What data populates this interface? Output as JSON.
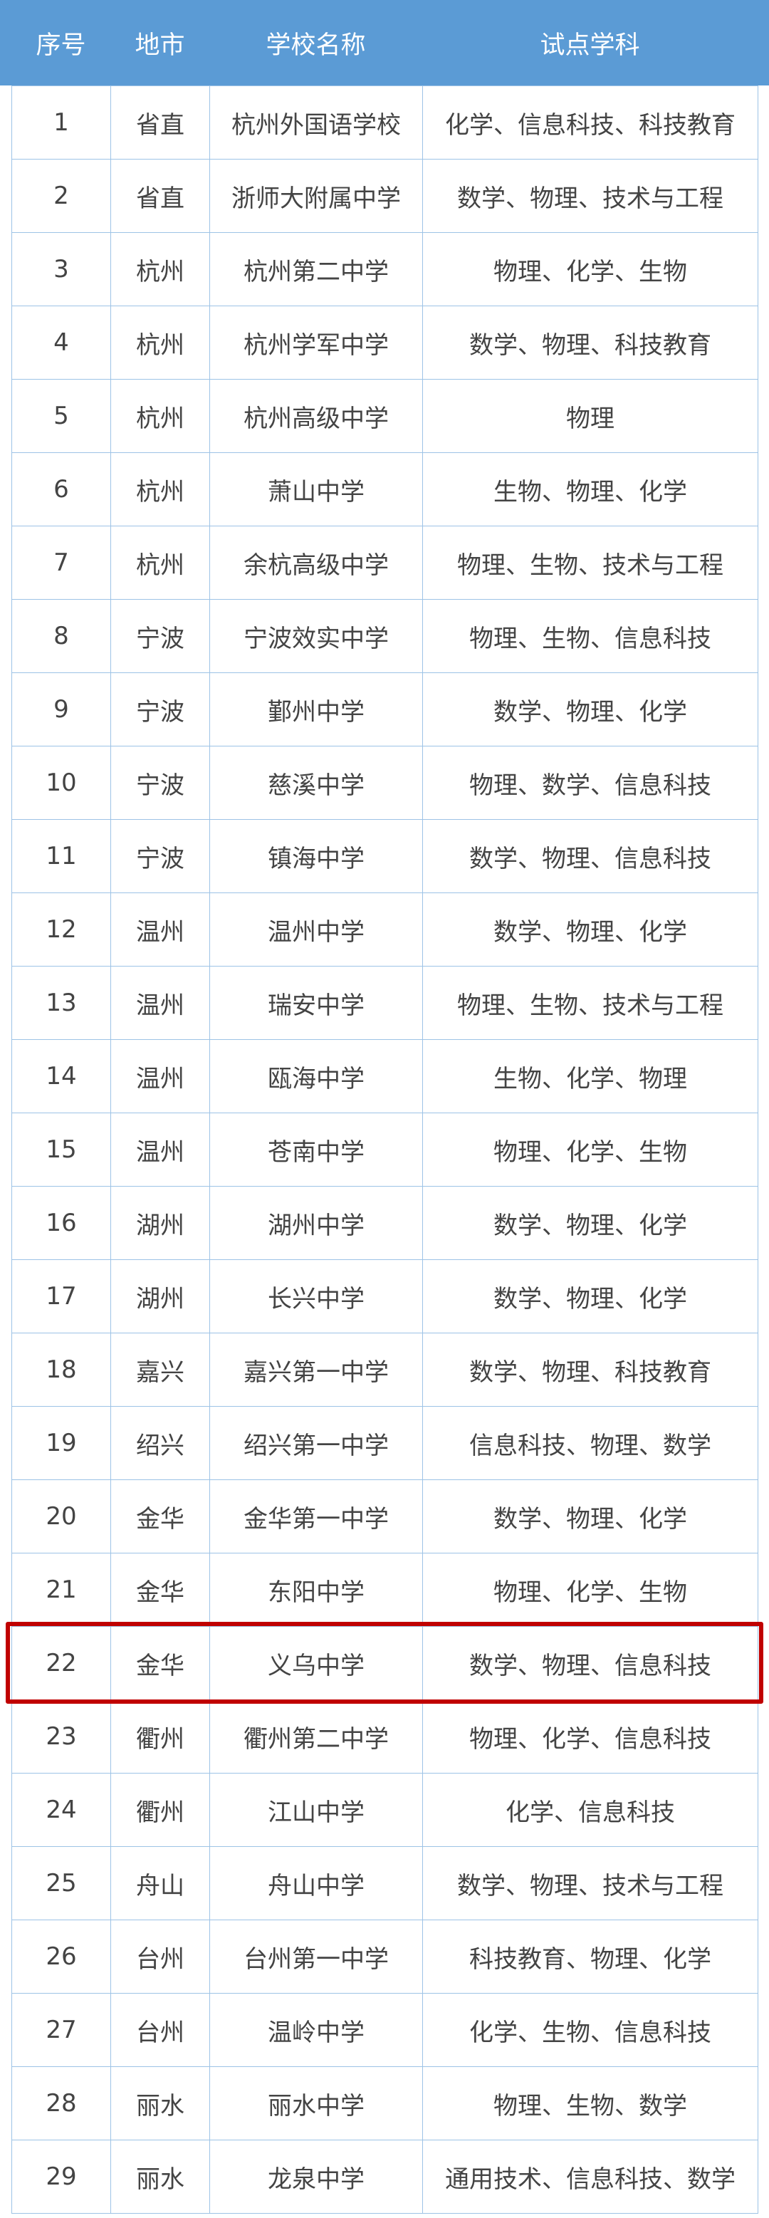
{
  "table": {
    "header": [
      "序号",
      "地市",
      "学校名称",
      "试点学科"
    ],
    "rows": [
      [
        "1",
        "省直",
        "杭州外国语学校",
        "化学、信息科技、科技教育"
      ],
      [
        "2",
        "省直",
        "浙师大附属中学",
        "数学、物理、技术与工程"
      ],
      [
        "3",
        "杭州",
        "杭州第二中学",
        "物理、化学、生物"
      ],
      [
        "4",
        "杭州",
        "杭州学军中学",
        "数学、物理、科技教育"
      ],
      [
        "5",
        "杭州",
        "杭州高级中学",
        "物理"
      ],
      [
        "6",
        "杭州",
        "萧山中学",
        "生物、物理、化学"
      ],
      [
        "7",
        "杭州",
        "余杭高级中学",
        "物理、生物、技术与工程"
      ],
      [
        "8",
        "宁波",
        "宁波效实中学",
        "物理、生物、信息科技"
      ],
      [
        "9",
        "宁波",
        "鄞州中学",
        "数学、物理、化学"
      ],
      [
        "10",
        "宁波",
        "慈溪中学",
        "物理、数学、信息科技"
      ],
      [
        "11",
        "宁波",
        "镇海中学",
        "数学、物理、信息科技"
      ],
      [
        "12",
        "温州",
        "温州中学",
        "数学、物理、化学"
      ],
      [
        "13",
        "温州",
        "瑞安中学",
        "物理、生物、技术与工程"
      ],
      [
        "14",
        "温州",
        "瓯海中学",
        "生物、化学、物理"
      ],
      [
        "15",
        "温州",
        "苍南中学",
        "物理、化学、生物"
      ],
      [
        "16",
        "湖州",
        "湖州中学",
        "数学、物理、化学"
      ],
      [
        "17",
        "湖州",
        "长兴中学",
        "数学、物理、化学"
      ],
      [
        "18",
        "嘉兴",
        "嘉兴第一中学",
        "数学、物理、科技教育"
      ],
      [
        "19",
        "绍兴",
        "绍兴第一中学",
        "信息科技、物理、数学"
      ],
      [
        "20",
        "金华",
        "金华第一中学",
        "数学、物理、化学"
      ],
      [
        "21",
        "金华",
        "东阳中学",
        "物理、化学、生物"
      ],
      [
        "22",
        "金华",
        "义乌中学",
        "数学、物理、信息科技"
      ],
      [
        "23",
        "衢州",
        "衢州第二中学",
        "物理、化学、信息科技"
      ],
      [
        "24",
        "衢州",
        "江山中学",
        "化学、信息科技"
      ],
      [
        "25",
        "舟山",
        "舟山中学",
        "数学、物理、技术与工程"
      ],
      [
        "26",
        "台州",
        "台州第一中学",
        "科技教育、物理、化学"
      ],
      [
        "27",
        "台州",
        "温岭中学",
        "化学、生物、信息科技"
      ],
      [
        "28",
        "丽水",
        "丽水中学",
        "物理、生物、数学"
      ],
      [
        "29",
        "丽水",
        "龙泉中学",
        "通用技术、信息科技、数学"
      ]
    ]
  }
}
